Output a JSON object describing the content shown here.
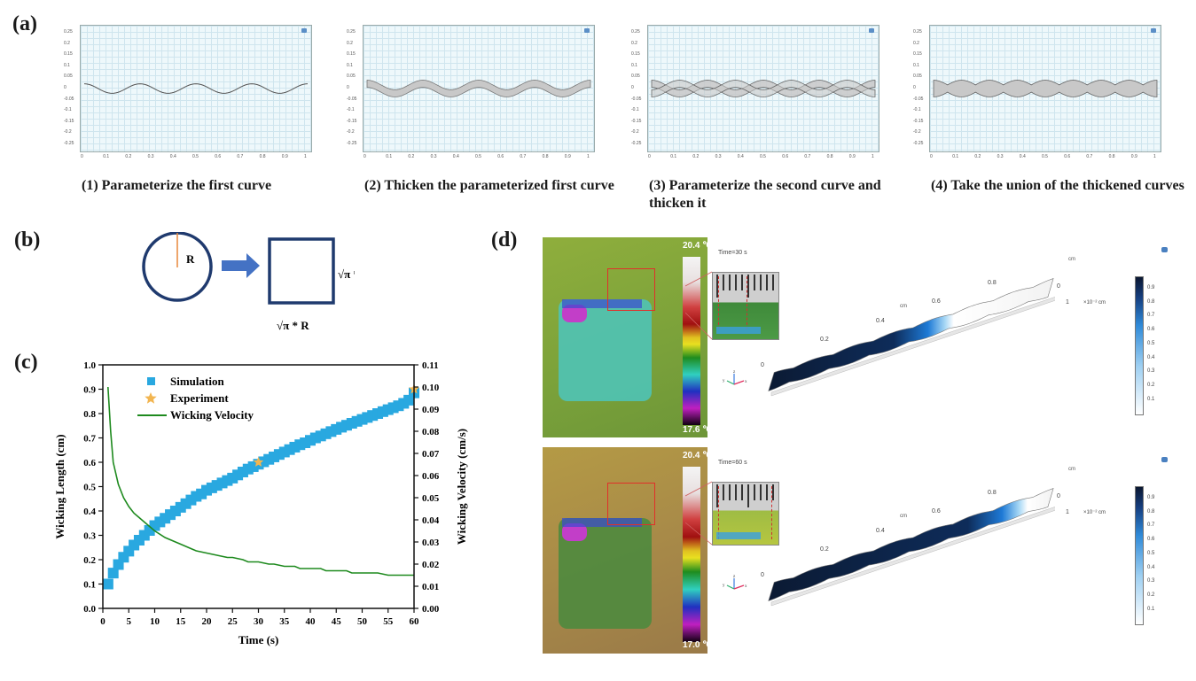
{
  "panel_a": {
    "label": "(a)",
    "steps": [
      {
        "caption": "(1) Parameterize the first curve",
        "mode": "curve"
      },
      {
        "caption": "(2) Thicken the parameterized first curve",
        "mode": "thick"
      },
      {
        "caption": "(3) Parameterize the second curve and thicken it",
        "mode": "two"
      },
      {
        "caption": "(4) Take the union of the thickened curves",
        "mode": "union"
      }
    ],
    "x_ticks": [
      "0",
      "0.1",
      "0.2",
      "0.3",
      "0.4",
      "0.5",
      "0.6",
      "0.7",
      "0.8",
      "0.9",
      "1"
    ],
    "y_ticks": [
      "0.25",
      "0.2",
      "0.15",
      "0.1",
      "0.05",
      "0",
      "-0.05",
      "-0.1",
      "-0.15",
      "-0.2",
      "-0.25"
    ]
  },
  "panel_b": {
    "label": "(b)",
    "radius_label": "R",
    "side_right": "√π * R",
    "side_bottom": "√π * R",
    "colors": {
      "shape": "#1f3a6e",
      "radius": "#e8893a",
      "arrow": "#4472c4"
    }
  },
  "panel_c": {
    "label": "(c)"
  },
  "panel_d": {
    "label": "(d)",
    "frames": [
      {
        "time_label": "Time=30 s",
        "temp_max": "20.4 ℃",
        "temp_min": "17.6 ℃",
        "front": 0.62
      },
      {
        "time_label": "Time=60 s",
        "temp_max": "20.4 ℃",
        "temp_min": "17.0 ℃",
        "front": 0.88
      }
    ],
    "axis_ticks": [
      "0",
      "0.2",
      "0.4",
      "0.6",
      "0.8"
    ],
    "unit": "cm",
    "z_label": "×10⁻² cm",
    "z_ticks": [
      "0",
      "1"
    ],
    "colorbar_ticks": [
      "0.9",
      "0.8",
      "0.7",
      "0.6",
      "0.5",
      "0.4",
      "0.3",
      "0.2",
      "0.1"
    ],
    "triad": {
      "x": "x",
      "y": "y",
      "z": "z"
    }
  },
  "chart_data": {
    "type": "line",
    "title": "",
    "xlabel": "Time (s)",
    "ylabel": "Wicking Length (cm)",
    "y2label": "Wicking Velocity (cm/s)",
    "xlim": [
      0,
      60
    ],
    "ylim": [
      0,
      1.0
    ],
    "y2lim": [
      0,
      0.11
    ],
    "x_ticks": [
      "0",
      "5",
      "10",
      "15",
      "20",
      "25",
      "30",
      "35",
      "40",
      "45",
      "50",
      "55",
      "60"
    ],
    "y_ticks": [
      "0.0",
      "0.1",
      "0.2",
      "0.3",
      "0.4",
      "0.5",
      "0.6",
      "0.7",
      "0.8",
      "0.9",
      "1.0"
    ],
    "y2_ticks": [
      "0.00",
      "0.01",
      "0.02",
      "0.03",
      "0.04",
      "0.05",
      "0.06",
      "0.07",
      "0.08",
      "0.09",
      "0.10",
      "0.11"
    ],
    "legend": [
      "Simulation",
      "Experiment",
      "Wicking Velocity"
    ],
    "legend_position": "top-left",
    "series": [
      {
        "name": "Simulation",
        "axis": "left",
        "marker": "square",
        "color": "#29a8e0",
        "x": [
          1,
          2,
          3,
          4,
          5,
          6,
          7,
          8,
          9,
          10,
          11,
          12,
          13,
          14,
          15,
          16,
          17,
          18,
          19,
          20,
          21,
          22,
          23,
          24,
          25,
          26,
          27,
          28,
          29,
          30,
          31,
          32,
          33,
          34,
          35,
          36,
          37,
          38,
          39,
          40,
          41,
          42,
          43,
          44,
          45,
          46,
          47,
          48,
          49,
          50,
          51,
          52,
          53,
          54,
          55,
          56,
          57,
          58,
          59,
          60
        ],
        "values": [
          0.1,
          0.145,
          0.18,
          0.21,
          0.235,
          0.26,
          0.28,
          0.3,
          0.32,
          0.34,
          0.355,
          0.37,
          0.385,
          0.4,
          0.415,
          0.43,
          0.445,
          0.46,
          0.47,
          0.485,
          0.495,
          0.505,
          0.515,
          0.525,
          0.535,
          0.548,
          0.56,
          0.572,
          0.582,
          0.592,
          0.602,
          0.612,
          0.622,
          0.632,
          0.642,
          0.652,
          0.662,
          0.672,
          0.68,
          0.69,
          0.7,
          0.708,
          0.717,
          0.726,
          0.735,
          0.744,
          0.752,
          0.76,
          0.768,
          0.776,
          0.784,
          0.792,
          0.8,
          0.808,
          0.816,
          0.824,
          0.832,
          0.842,
          0.855,
          0.885
        ]
      },
      {
        "name": "Experiment",
        "axis": "left",
        "marker": "star",
        "color": "#f2b550",
        "x": [
          30,
          60
        ],
        "values": [
          0.6,
          0.9
        ]
      },
      {
        "name": "Wicking Velocity",
        "axis": "right",
        "marker": "line",
        "color": "#1e8a1e",
        "x": [
          1,
          1.5,
          2,
          3,
          4,
          5,
          6,
          7,
          8,
          9,
          10,
          12,
          14,
          15,
          17,
          18,
          20,
          22,
          24,
          25,
          27,
          28,
          30,
          32,
          33,
          35,
          37,
          38,
          40,
          42,
          43,
          45,
          47,
          48,
          50,
          52,
          53,
          55,
          56,
          58,
          60
        ],
        "values": [
          0.1,
          0.08,
          0.066,
          0.056,
          0.05,
          0.046,
          0.043,
          0.041,
          0.039,
          0.037,
          0.035,
          0.032,
          0.03,
          0.029,
          0.027,
          0.026,
          0.025,
          0.024,
          0.023,
          0.023,
          0.022,
          0.021,
          0.021,
          0.02,
          0.02,
          0.019,
          0.019,
          0.018,
          0.018,
          0.018,
          0.017,
          0.017,
          0.017,
          0.016,
          0.016,
          0.016,
          0.016,
          0.015,
          0.015,
          0.015,
          0.015
        ]
      }
    ]
  }
}
